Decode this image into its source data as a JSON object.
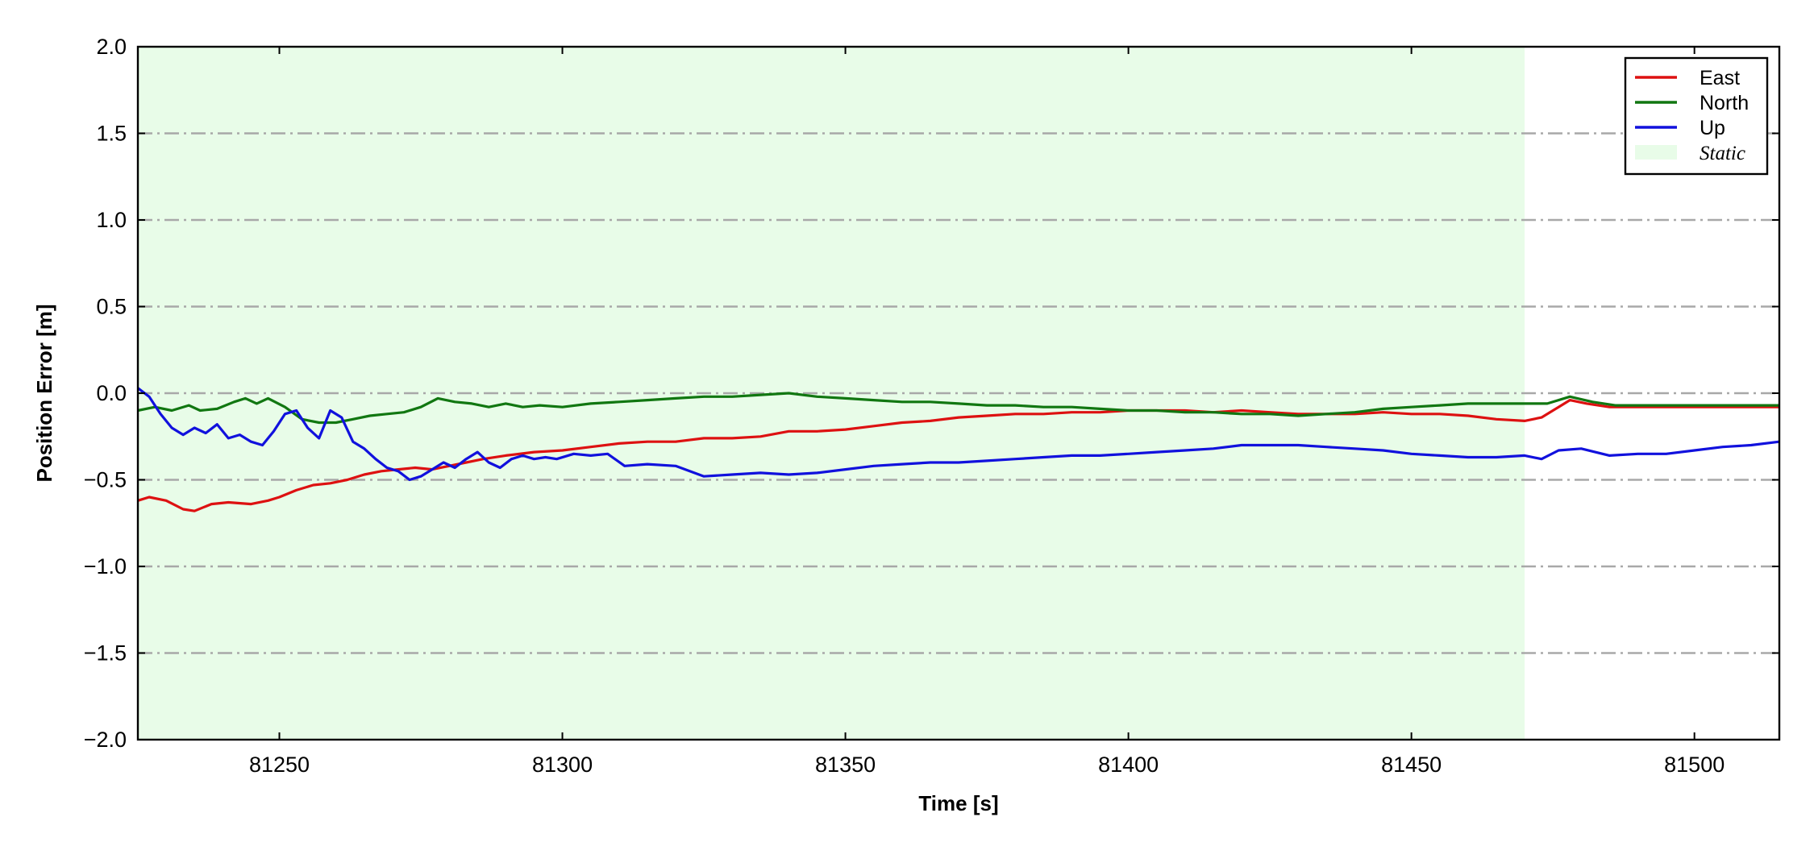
{
  "chart_data": {
    "type": "line",
    "xlabel": "Time [s]",
    "ylabel": "Position Error [m]",
    "xlim": [
      81225,
      81515
    ],
    "ylim": [
      -2.0,
      2.0
    ],
    "xticks": [
      81250,
      81300,
      81350,
      81400,
      81450,
      81500
    ],
    "yticks": [
      -2.0,
      -1.5,
      -1.0,
      -0.5,
      0.0,
      0.5,
      1.0,
      1.5,
      2.0
    ],
    "ytick_labels": [
      "−2.0",
      "−1.5",
      "−1.0",
      "−0.5",
      "0.0",
      "0.5",
      "1.0",
      "1.5",
      "2.0"
    ],
    "grid": "horizontal dash-dot",
    "legend_position": "top-right",
    "shaded_region": {
      "label": "Static",
      "x_start": 81225,
      "x_end": 81470,
      "color": "#e8fce8"
    },
    "series": [
      {
        "name": "East",
        "color": "#dd1111",
        "points": [
          [
            81225,
            -0.62
          ],
          [
            81227,
            -0.6
          ],
          [
            81230,
            -0.62
          ],
          [
            81233,
            -0.67
          ],
          [
            81235,
            -0.68
          ],
          [
            81238,
            -0.64
          ],
          [
            81241,
            -0.63
          ],
          [
            81245,
            -0.64
          ],
          [
            81248,
            -0.62
          ],
          [
            81250,
            -0.6
          ],
          [
            81253,
            -0.56
          ],
          [
            81256,
            -0.53
          ],
          [
            81259,
            -0.52
          ],
          [
            81262,
            -0.5
          ],
          [
            81265,
            -0.47
          ],
          [
            81268,
            -0.45
          ],
          [
            81271,
            -0.44
          ],
          [
            81274,
            -0.43
          ],
          [
            81277,
            -0.44
          ],
          [
            81280,
            -0.42
          ],
          [
            81283,
            -0.4
          ],
          [
            81286,
            -0.38
          ],
          [
            81290,
            -0.36
          ],
          [
            81295,
            -0.34
          ],
          [
            81300,
            -0.33
          ],
          [
            81305,
            -0.31
          ],
          [
            81310,
            -0.29
          ],
          [
            81315,
            -0.28
          ],
          [
            81320,
            -0.28
          ],
          [
            81325,
            -0.26
          ],
          [
            81330,
            -0.26
          ],
          [
            81335,
            -0.25
          ],
          [
            81340,
            -0.22
          ],
          [
            81345,
            -0.22
          ],
          [
            81350,
            -0.21
          ],
          [
            81355,
            -0.19
          ],
          [
            81360,
            -0.17
          ],
          [
            81365,
            -0.16
          ],
          [
            81370,
            -0.14
          ],
          [
            81375,
            -0.13
          ],
          [
            81380,
            -0.12
          ],
          [
            81385,
            -0.12
          ],
          [
            81390,
            -0.11
          ],
          [
            81395,
            -0.11
          ],
          [
            81400,
            -0.1
          ],
          [
            81405,
            -0.1
          ],
          [
            81410,
            -0.1
          ],
          [
            81415,
            -0.11
          ],
          [
            81420,
            -0.1
          ],
          [
            81425,
            -0.11
          ],
          [
            81430,
            -0.12
          ],
          [
            81435,
            -0.12
          ],
          [
            81440,
            -0.12
          ],
          [
            81445,
            -0.11
          ],
          [
            81450,
            -0.12
          ],
          [
            81455,
            -0.12
          ],
          [
            81460,
            -0.13
          ],
          [
            81465,
            -0.15
          ],
          [
            81470,
            -0.16
          ],
          [
            81473,
            -0.14
          ],
          [
            81476,
            -0.08
          ],
          [
            81478,
            -0.04
          ],
          [
            81481,
            -0.06
          ],
          [
            81485,
            -0.08
          ],
          [
            81490,
            -0.08
          ],
          [
            81495,
            -0.08
          ],
          [
            81500,
            -0.08
          ],
          [
            81505,
            -0.08
          ],
          [
            81510,
            -0.08
          ],
          [
            81515,
            -0.08
          ]
        ]
      },
      {
        "name": "North",
        "color": "#117711",
        "points": [
          [
            81225,
            -0.1
          ],
          [
            81228,
            -0.08
          ],
          [
            81231,
            -0.1
          ],
          [
            81234,
            -0.07
          ],
          [
            81236,
            -0.1
          ],
          [
            81239,
            -0.09
          ],
          [
            81242,
            -0.05
          ],
          [
            81244,
            -0.03
          ],
          [
            81246,
            -0.06
          ],
          [
            81248,
            -0.03
          ],
          [
            81251,
            -0.08
          ],
          [
            81254,
            -0.15
          ],
          [
            81257,
            -0.17
          ],
          [
            81260,
            -0.17
          ],
          [
            81263,
            -0.15
          ],
          [
            81266,
            -0.13
          ],
          [
            81269,
            -0.12
          ],
          [
            81272,
            -0.11
          ],
          [
            81275,
            -0.08
          ],
          [
            81278,
            -0.03
          ],
          [
            81281,
            -0.05
          ],
          [
            81284,
            -0.06
          ],
          [
            81287,
            -0.08
          ],
          [
            81290,
            -0.06
          ],
          [
            81293,
            -0.08
          ],
          [
            81296,
            -0.07
          ],
          [
            81300,
            -0.08
          ],
          [
            81305,
            -0.06
          ],
          [
            81310,
            -0.05
          ],
          [
            81315,
            -0.04
          ],
          [
            81320,
            -0.03
          ],
          [
            81325,
            -0.02
          ],
          [
            81330,
            -0.02
          ],
          [
            81335,
            -0.01
          ],
          [
            81340,
            0.0
          ],
          [
            81345,
            -0.02
          ],
          [
            81350,
            -0.03
          ],
          [
            81355,
            -0.04
          ],
          [
            81360,
            -0.05
          ],
          [
            81365,
            -0.05
          ],
          [
            81370,
            -0.06
          ],
          [
            81375,
            -0.07
          ],
          [
            81380,
            -0.07
          ],
          [
            81385,
            -0.08
          ],
          [
            81390,
            -0.08
          ],
          [
            81395,
            -0.09
          ],
          [
            81400,
            -0.1
          ],
          [
            81405,
            -0.1
          ],
          [
            81410,
            -0.11
          ],
          [
            81415,
            -0.11
          ],
          [
            81420,
            -0.12
          ],
          [
            81425,
            -0.12
          ],
          [
            81430,
            -0.13
          ],
          [
            81435,
            -0.12
          ],
          [
            81440,
            -0.11
          ],
          [
            81445,
            -0.09
          ],
          [
            81450,
            -0.08
          ],
          [
            81455,
            -0.07
          ],
          [
            81460,
            -0.06
          ],
          [
            81465,
            -0.06
          ],
          [
            81470,
            -0.06
          ],
          [
            81474,
            -0.06
          ],
          [
            81478,
            -0.02
          ],
          [
            81482,
            -0.05
          ],
          [
            81486,
            -0.07
          ],
          [
            81490,
            -0.07
          ],
          [
            81495,
            -0.07
          ],
          [
            81500,
            -0.07
          ],
          [
            81505,
            -0.07
          ],
          [
            81510,
            -0.07
          ],
          [
            81515,
            -0.07
          ]
        ]
      },
      {
        "name": "Up",
        "color": "#1111dd",
        "points": [
          [
            81225,
            0.03
          ],
          [
            81227,
            -0.02
          ],
          [
            81229,
            -0.12
          ],
          [
            81231,
            -0.2
          ],
          [
            81233,
            -0.24
          ],
          [
            81235,
            -0.2
          ],
          [
            81237,
            -0.23
          ],
          [
            81239,
            -0.18
          ],
          [
            81241,
            -0.26
          ],
          [
            81243,
            -0.24
          ],
          [
            81245,
            -0.28
          ],
          [
            81247,
            -0.3
          ],
          [
            81249,
            -0.22
          ],
          [
            81251,
            -0.12
          ],
          [
            81253,
            -0.1
          ],
          [
            81255,
            -0.2
          ],
          [
            81257,
            -0.26
          ],
          [
            81259,
            -0.1
          ],
          [
            81261,
            -0.14
          ],
          [
            81263,
            -0.28
          ],
          [
            81265,
            -0.32
          ],
          [
            81267,
            -0.38
          ],
          [
            81269,
            -0.43
          ],
          [
            81271,
            -0.45
          ],
          [
            81273,
            -0.5
          ],
          [
            81275,
            -0.48
          ],
          [
            81277,
            -0.44
          ],
          [
            81279,
            -0.4
          ],
          [
            81281,
            -0.43
          ],
          [
            81283,
            -0.38
          ],
          [
            81285,
            -0.34
          ],
          [
            81287,
            -0.4
          ],
          [
            81289,
            -0.43
          ],
          [
            81291,
            -0.38
          ],
          [
            81293,
            -0.36
          ],
          [
            81295,
            -0.38
          ],
          [
            81297,
            -0.37
          ],
          [
            81299,
            -0.38
          ],
          [
            81302,
            -0.35
          ],
          [
            81305,
            -0.36
          ],
          [
            81308,
            -0.35
          ],
          [
            81311,
            -0.42
          ],
          [
            81315,
            -0.41
          ],
          [
            81320,
            -0.42
          ],
          [
            81325,
            -0.48
          ],
          [
            81330,
            -0.47
          ],
          [
            81335,
            -0.46
          ],
          [
            81340,
            -0.47
          ],
          [
            81345,
            -0.46
          ],
          [
            81350,
            -0.44
          ],
          [
            81355,
            -0.42
          ],
          [
            81360,
            -0.41
          ],
          [
            81365,
            -0.4
          ],
          [
            81370,
            -0.4
          ],
          [
            81375,
            -0.39
          ],
          [
            81380,
            -0.38
          ],
          [
            81385,
            -0.37
          ],
          [
            81390,
            -0.36
          ],
          [
            81395,
            -0.36
          ],
          [
            81400,
            -0.35
          ],
          [
            81405,
            -0.34
          ],
          [
            81410,
            -0.33
          ],
          [
            81415,
            -0.32
          ],
          [
            81420,
            -0.3
          ],
          [
            81425,
            -0.3
          ],
          [
            81430,
            -0.3
          ],
          [
            81435,
            -0.31
          ],
          [
            81440,
            -0.32
          ],
          [
            81445,
            -0.33
          ],
          [
            81450,
            -0.35
          ],
          [
            81455,
            -0.36
          ],
          [
            81460,
            -0.37
          ],
          [
            81465,
            -0.37
          ],
          [
            81470,
            -0.36
          ],
          [
            81473,
            -0.38
          ],
          [
            81476,
            -0.33
          ],
          [
            81480,
            -0.32
          ],
          [
            81485,
            -0.36
          ],
          [
            81490,
            -0.35
          ],
          [
            81495,
            -0.35
          ],
          [
            81500,
            -0.33
          ],
          [
            81505,
            -0.31
          ],
          [
            81510,
            -0.3
          ],
          [
            81515,
            -0.28
          ]
        ]
      }
    ]
  }
}
